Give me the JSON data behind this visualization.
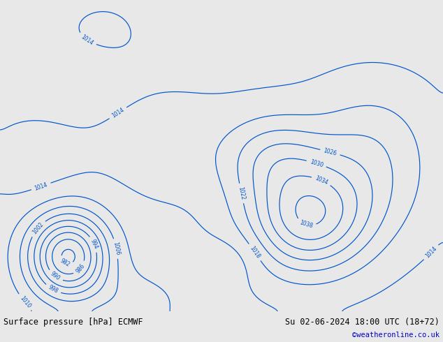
{
  "title_left": "Surface pressure [hPa] ECMWF",
  "title_right": "Su 02-06-2024 18:00 UTC (18+72)",
  "credit": "©weatheronline.co.uk",
  "credit_color": "#0000cc",
  "ocean_color": "#d8e8f0",
  "land_color": "#b8d8a0",
  "land_edge": "#888888",
  "footer_bg": "#e8e8e8",
  "footer_text_color": "#000000",
  "title_fontsize": 8.5,
  "credit_fontsize": 7.5,
  "fig_width": 6.34,
  "fig_height": 4.9,
  "lon_min": -100,
  "lon_max": 30,
  "lat_min": -60,
  "lat_max": 25,
  "blue": "#0055cc",
  "red": "#cc2200",
  "black": "#000000"
}
